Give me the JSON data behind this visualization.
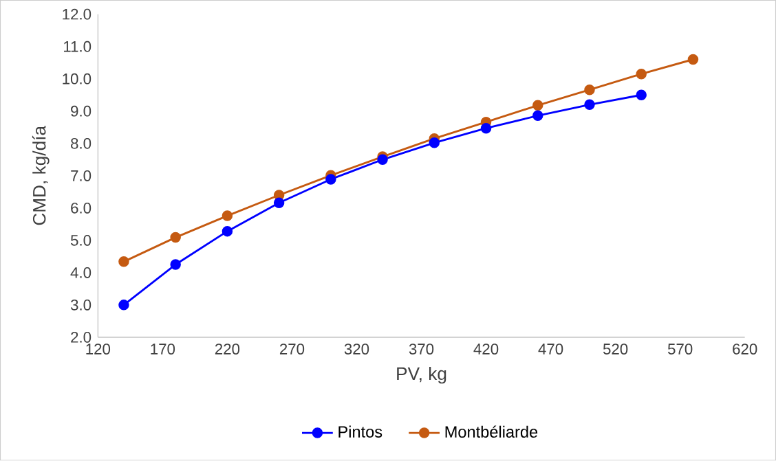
{
  "chart_data": {
    "type": "line",
    "xlabel": "PV, kg",
    "ylabel": "CMD, kg/día",
    "xlim": [
      120,
      620
    ],
    "xticks": [
      120,
      170,
      220,
      270,
      320,
      370,
      420,
      470,
      520,
      570,
      620
    ],
    "ylim": [
      2,
      12
    ],
    "yticks": [
      {
        "value": 2,
        "label": "2.0"
      },
      {
        "value": 3,
        "label": "3.0"
      },
      {
        "value": 4,
        "label": "4.0"
      },
      {
        "value": 5,
        "label": "5.0"
      },
      {
        "value": 6,
        "label": "6.0"
      },
      {
        "value": 7,
        "label": "7.0"
      },
      {
        "value": 8,
        "label": "8.0"
      },
      {
        "value": 9,
        "label": "9.0"
      },
      {
        "value": 10,
        "label": "10.0"
      },
      {
        "value": 11,
        "label": "11.0"
      },
      {
        "value": 12,
        "label": "12.0"
      }
    ],
    "grid": false,
    "legend": "bottom",
    "marker": "circle",
    "line_style": "solid",
    "series": [
      {
        "name": "Pintos",
        "color": "#0000ff",
        "x": [
          140,
          180,
          220,
          260,
          300,
          340,
          380,
          420,
          460,
          500,
          540
        ],
        "values": [
          3.0,
          4.25,
          5.28,
          6.16,
          6.89,
          7.5,
          8.02,
          8.47,
          8.86,
          9.2,
          9.5
        ]
      },
      {
        "name": "Montbéliarde",
        "color": "#c55a11",
        "x": [
          140,
          180,
          220,
          260,
          300,
          340,
          380,
          420,
          460,
          500,
          540,
          580
        ],
        "values": [
          4.34,
          5.09,
          5.76,
          6.4,
          7.01,
          7.59,
          8.15,
          8.66,
          9.18,
          9.66,
          10.15,
          10.6
        ]
      }
    ]
  }
}
